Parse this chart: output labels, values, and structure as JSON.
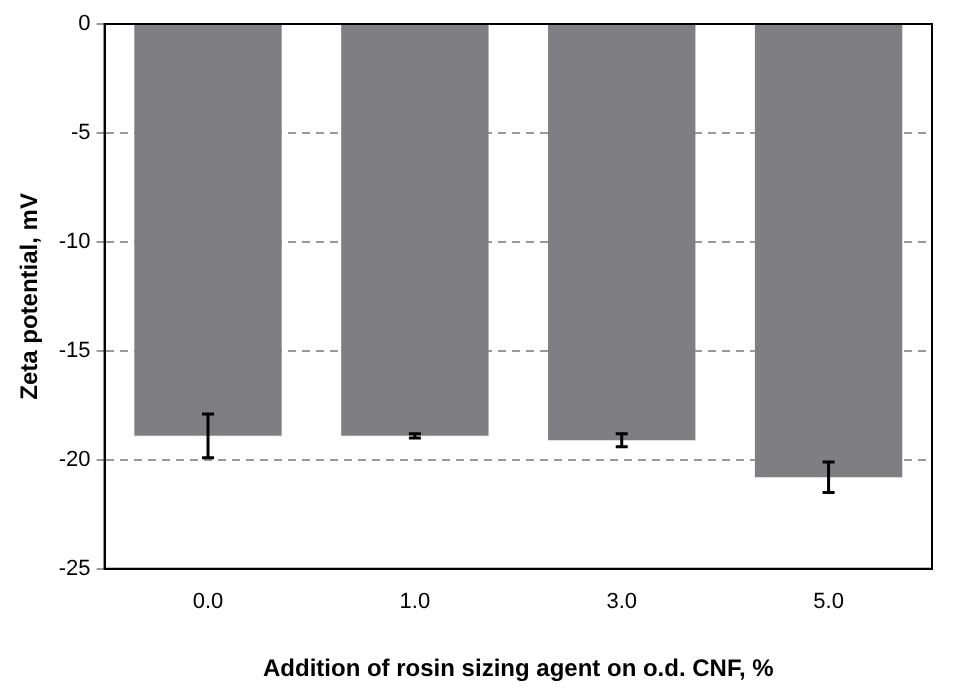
{
  "chart_data": {
    "type": "bar",
    "xlabel": "Addition of rosin sizing agent on o.d. CNF, %",
    "ylabel": "Zeta potential, mV",
    "categories": [
      "0.0",
      "1.0",
      "3.0",
      "5.0"
    ],
    "values": [
      -18.9,
      -18.9,
      -19.1,
      -20.8
    ],
    "errors": [
      1.0,
      0.1,
      0.3,
      0.7
    ],
    "color": "#7f7f83",
    "ylim": [
      -25,
      0
    ],
    "yticks": [
      -25,
      -20,
      -15,
      -10,
      -5,
      0
    ],
    "grid": "y",
    "line_style": "dashed"
  }
}
